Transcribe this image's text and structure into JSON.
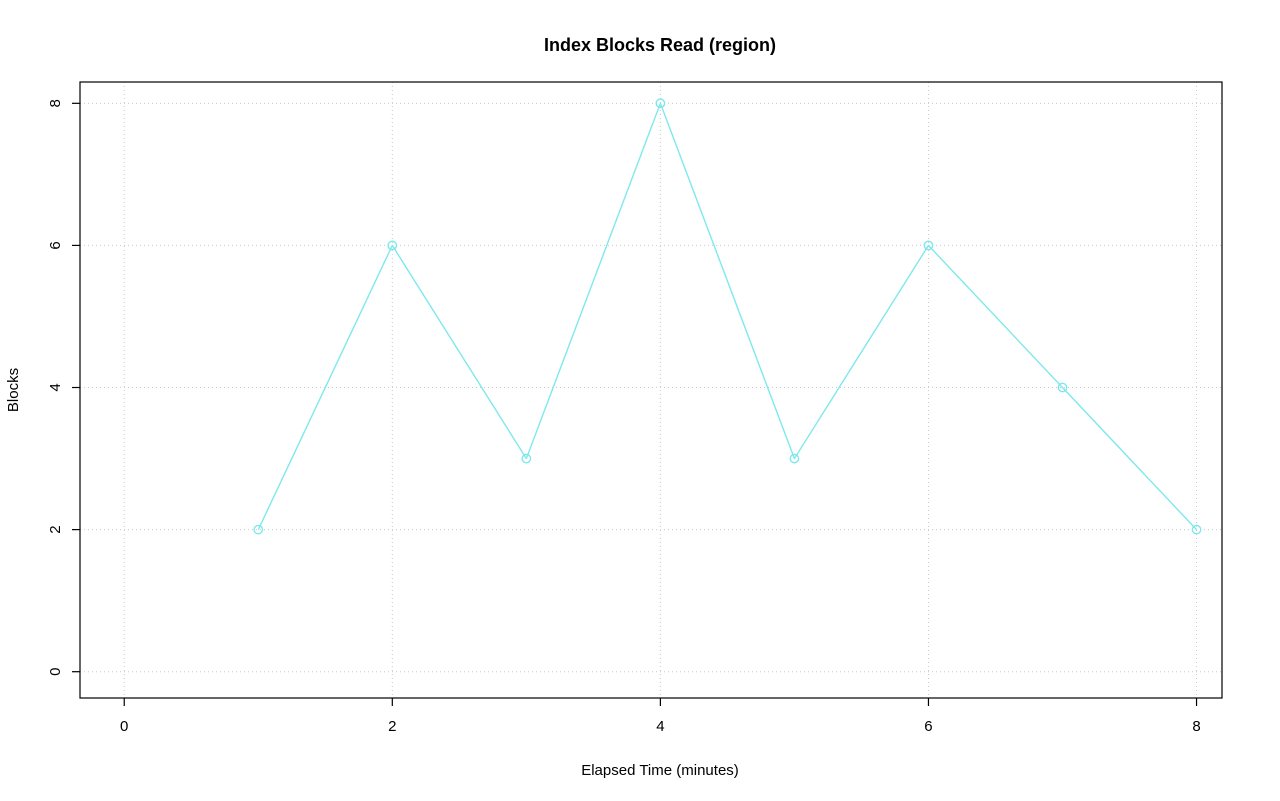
{
  "chart_data": {
    "type": "line",
    "title": "Index Blocks Read (region)",
    "xlabel": "Elapsed Time (minutes)",
    "ylabel": "Blocks",
    "x": [
      1,
      2,
      3,
      4,
      5,
      6,
      7,
      8
    ],
    "values": [
      2,
      6,
      3,
      8,
      3,
      6,
      4,
      2
    ],
    "xticks": [
      0,
      2,
      4,
      6,
      8
    ],
    "yticks": [
      0,
      2,
      4,
      6,
      8
    ],
    "xtick_labels": [
      "0",
      "2",
      "4",
      "6",
      "8"
    ],
    "ytick_labels": [
      "0",
      "2",
      "4",
      "6",
      "8"
    ],
    "xlim": [
      -0.33,
      8.19
    ],
    "ylim": [
      -0.37,
      8.3
    ],
    "grid": "dotted",
    "legend": "none",
    "marker": "open-circle",
    "colors": {
      "line": "#7fe8ec",
      "marker": "#7fe8ec",
      "grid": "#c9c9c9",
      "axis": "#000000",
      "text": "#000000",
      "background": "#ffffff"
    }
  }
}
